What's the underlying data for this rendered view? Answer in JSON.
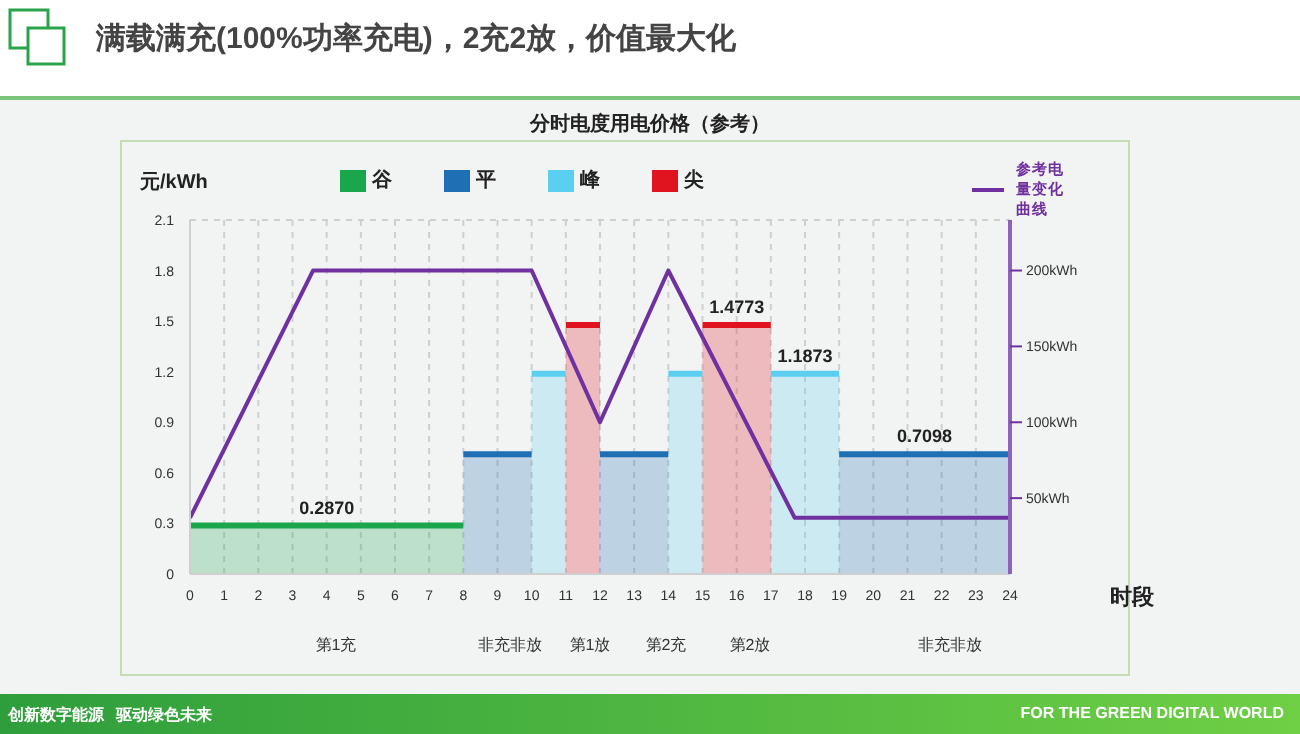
{
  "chart_data": {
    "type": "histogram",
    "title": "满载满充(100%功率充电)，2充2放，价值最大化",
    "subtitle": "分时电度用电价格（参考）",
    "xlabel": "时段",
    "ylabel": "元/kWh",
    "grid": true,
    "legend": "top",
    "xlim": [
      0,
      24
    ],
    "xticks": [
      0,
      1,
      2,
      3,
      4,
      5,
      6,
      7,
      8,
      9,
      10,
      11,
      12,
      13,
      14,
      15,
      16,
      17,
      18,
      19,
      20,
      21,
      22,
      23,
      24
    ],
    "ylim": [
      0,
      2.1
    ],
    "yticks": [
      0,
      0.3,
      0.6,
      0.9,
      1.2,
      1.5,
      1.8,
      2.1
    ],
    "y2lim": [
      0,
      233.3
    ],
    "y2ticks": [
      {
        "value": 50,
        "label": "50kWh"
      },
      {
        "value": 100,
        "label": "100kWh"
      },
      {
        "value": 150,
        "label": "150kWh"
      },
      {
        "value": 200,
        "label": "200kWh"
      }
    ],
    "series": [
      {
        "name": "谷",
        "color": "#1aa64a",
        "bins": [
          0,
          8
        ],
        "values": [
          0.287
        ],
        "value_labels": [
          "0.2870"
        ]
      },
      {
        "name": "平",
        "color": "#1f6fb5",
        "bins": [
          8,
          10,
          12,
          14,
          19,
          24
        ],
        "values": [
          0.7098,
          null,
          0.7098,
          null,
          0.7098
        ],
        "value_labels": [
          null,
          null,
          null,
          null,
          "0.7098"
        ]
      },
      {
        "name": "峰",
        "color": "#5bcff0",
        "bins": [
          10,
          11,
          14,
          15,
          17,
          19
        ],
        "values": [
          1.1873,
          null,
          1.1873,
          null,
          1.1873
        ],
        "value_labels": [
          null,
          null,
          null,
          null,
          "1.1873"
        ]
      },
      {
        "name": "尖",
        "color": "#e0141e",
        "bins": [
          11,
          12,
          15,
          17
        ],
        "values": [
          1.4773,
          null,
          1.4773
        ],
        "value_labels": [
          null,
          null,
          "1.4773"
        ]
      },
      {
        "name": "参考电量变化曲线",
        "type": "line",
        "axis": "y2",
        "color": "#7030a0",
        "marker": "none",
        "x": [
          0,
          3.6,
          10,
          12,
          14,
          17.7,
          24
        ],
        "values": [
          37,
          200,
          200,
          100,
          200,
          37,
          37
        ]
      }
    ],
    "annotations": [
      "第1充",
      "非充非放",
      "第1放",
      "第2充",
      "第2放",
      "非充非放",
      "创新数字能源",
      "驱动绿色未来",
      "FOR THE GREEN DIGITAL WORLD"
    ]
  }
}
